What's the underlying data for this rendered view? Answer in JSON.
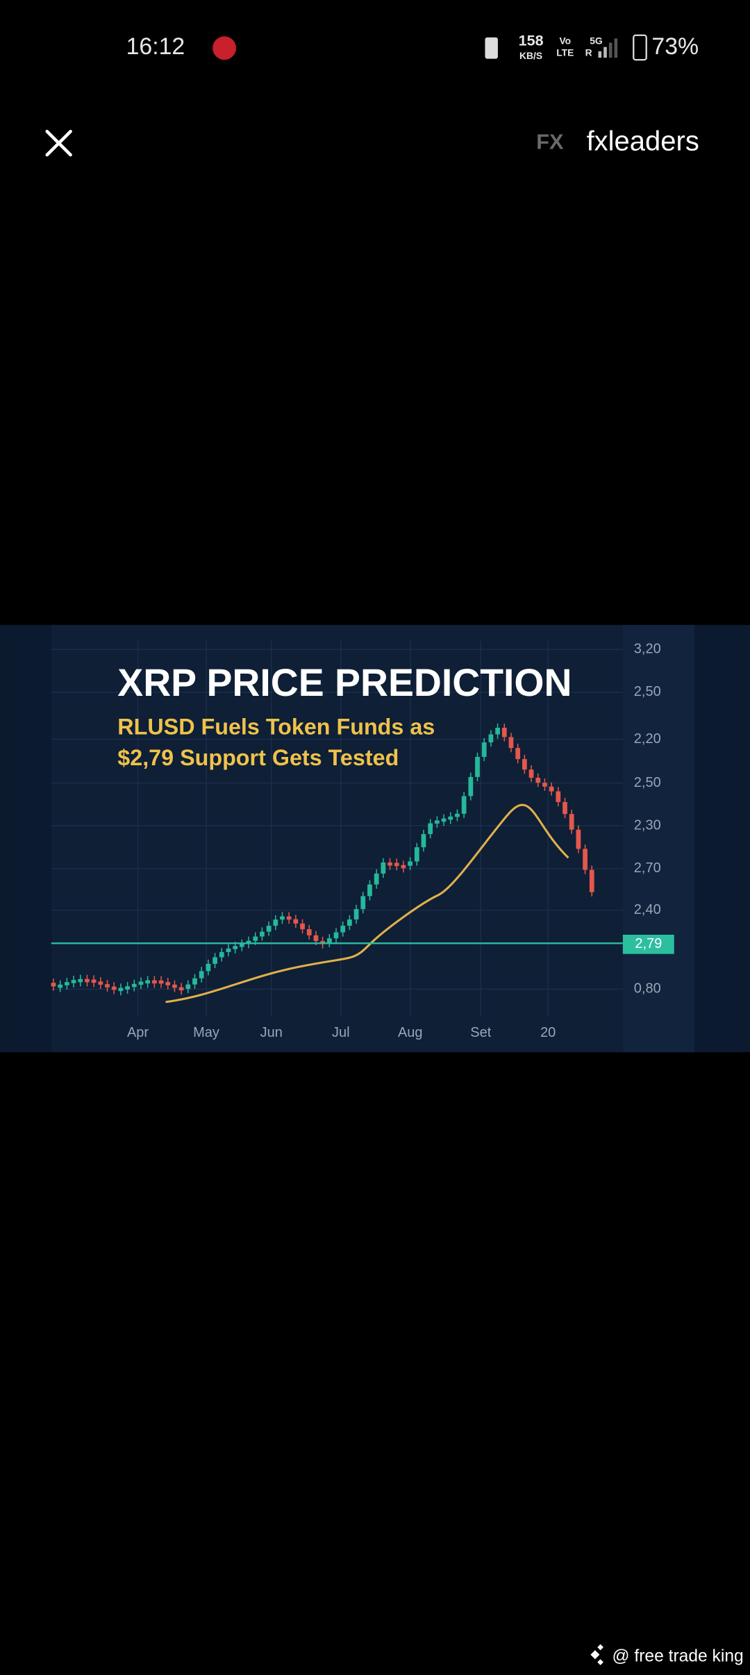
{
  "status_bar": {
    "time": "16:12",
    "network_speed": "158",
    "speed_unit": "KB/S",
    "volte_top": "Vo",
    "volte_bottom": "LTE",
    "signal_top": "5G",
    "signal_bottom": "R",
    "battery": "73%"
  },
  "header": {
    "logo": "FX",
    "site": "fxleaders"
  },
  "image": {
    "title": "XRP PRICE PREDICTION",
    "subtitle": [
      "RLUSD Fuels Token Funds as",
      "$2,79 Support Gets Tested"
    ],
    "y_axis_labels": [
      "3,20",
      "2,50",
      "2,20",
      "2,50",
      "2,30",
      "2,70",
      "2,40",
      "0,80"
    ],
    "support_label": "2,79",
    "x_axis_labels": [
      "Apr",
      "May",
      "Jun",
      "Jul",
      "Aug",
      "Set",
      "20"
    ]
  },
  "watermark": "@ free trade king"
}
